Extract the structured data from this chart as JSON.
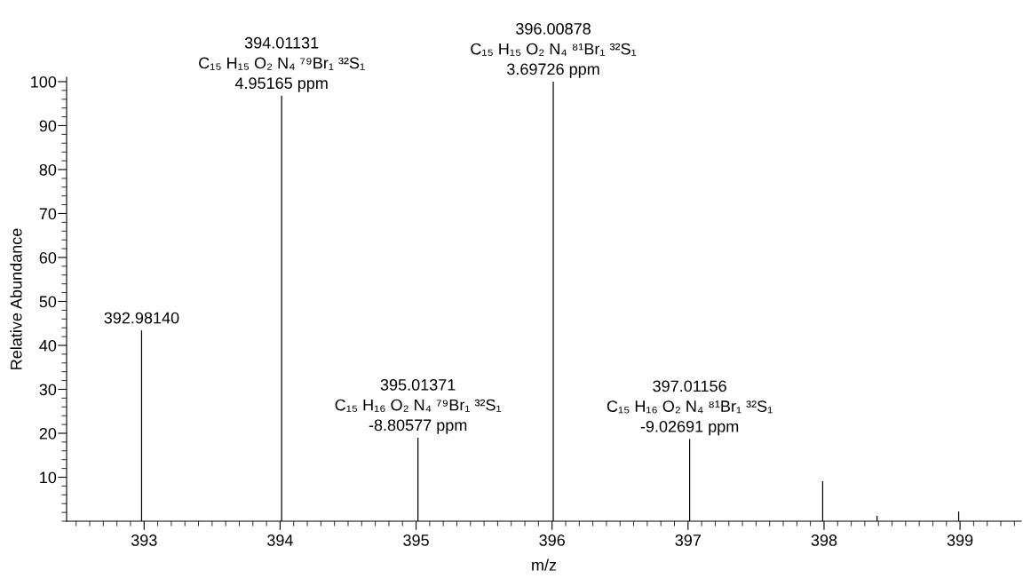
{
  "chart_data": {
    "type": "bar",
    "xlabel": "m/z",
    "ylabel": "Relative Abundance",
    "color": "#000000",
    "x": [
      392.9814,
      394.01131,
      395.01371,
      396.00878,
      397.01156,
      397.99,
      398.39,
      398.99
    ],
    "values": [
      43.4,
      96.8,
      19.0,
      100,
      18.7,
      9.1,
      1.2,
      2.2
    ],
    "xlim": [
      392.43,
      399.45
    ],
    "xticks": [
      393,
      394,
      395,
      396,
      397,
      398,
      399
    ],
    "ylim": [
      0,
      101
    ],
    "yticks": [
      10,
      20,
      30,
      40,
      50,
      60,
      70,
      80,
      90,
      100
    ],
    "grid": false,
    "annotations": [
      {
        "text": "392.98140",
        "x": 392.9814,
        "y": 43.4
      },
      {
        "text": "394.01131\nC₁₅ H₁₅ O₂ N₄ ⁷⁹Br₁ ³²S₁\n4.95165 ppm",
        "x": 394.01131,
        "y": 96.8
      },
      {
        "text": "395.01371\nC₁₅ H₁₆ O₂ N₄ ⁷⁹Br₁ ³²S₁\n-8.80577 ppm",
        "x": 395.01371,
        "y": 19.0
      },
      {
        "text": "396.00878\nC₁₅ H₁₅ O₂ N₄ ⁸¹Br₁ ³²S₁\n3.69726 ppm",
        "x": 396.00878,
        "y": 100
      },
      {
        "text": "397.01156\nC₁₅ H₁₆ O₂ N₄ ⁸¹Br₁ ³²S₁\n-9.02691 ppm",
        "x": 397.01156,
        "y": 18.7
      }
    ]
  }
}
